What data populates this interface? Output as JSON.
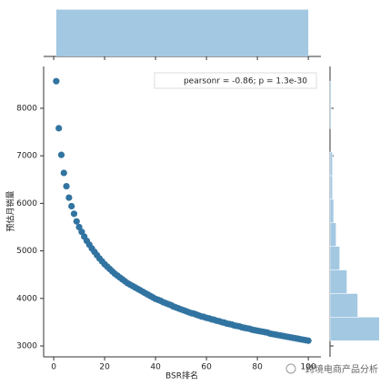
{
  "chart_data": [
    {
      "type": "scatter",
      "xlabel": "BSR排名",
      "ylabel": "预估月销量",
      "annotation": "pearsonr = -0.86; p = 1.3e-30",
      "color": "#3274a1",
      "legend_corner": "upper right",
      "x": [
        1,
        2,
        3,
        4,
        5,
        6,
        7,
        8,
        9,
        10,
        11,
        12,
        13,
        14,
        15,
        16,
        17,
        18,
        19,
        20,
        21,
        22,
        23,
        24,
        25,
        26,
        27,
        28,
        29,
        30,
        31,
        32,
        33,
        34,
        35,
        36,
        37,
        38,
        39,
        40,
        41,
        42,
        43,
        44,
        45,
        46,
        47,
        48,
        49,
        50,
        51,
        52,
        53,
        54,
        55,
        56,
        57,
        58,
        59,
        60,
        61,
        62,
        63,
        64,
        65,
        66,
        67,
        68,
        69,
        70,
        71,
        72,
        73,
        74,
        75,
        76,
        77,
        78,
        79,
        80,
        81,
        82,
        83,
        84,
        85,
        86,
        87,
        88,
        89,
        90,
        91,
        92,
        93,
        94,
        95,
        96,
        97,
        98,
        99,
        100
      ],
      "values": [
        8570,
        7580,
        7020,
        6640,
        6360,
        6120,
        5940,
        5780,
        5620,
        5500,
        5400,
        5300,
        5210,
        5130,
        5050,
        4980,
        4910,
        4840,
        4780,
        4720,
        4670,
        4620,
        4570,
        4520,
        4480,
        4440,
        4400,
        4360,
        4320,
        4290,
        4260,
        4230,
        4200,
        4170,
        4140,
        4110,
        4080,
        4050,
        4020,
        3990,
        3970,
        3950,
        3920,
        3900,
        3880,
        3860,
        3830,
        3810,
        3790,
        3770,
        3750,
        3730,
        3710,
        3690,
        3680,
        3660,
        3640,
        3620,
        3610,
        3590,
        3580,
        3560,
        3550,
        3530,
        3520,
        3500,
        3490,
        3470,
        3460,
        3450,
        3430,
        3420,
        3410,
        3390,
        3380,
        3370,
        3360,
        3340,
        3330,
        3320,
        3310,
        3300,
        3290,
        3280,
        3260,
        3250,
        3240,
        3230,
        3220,
        3210,
        3200,
        3190,
        3180,
        3170,
        3160,
        3150,
        3140,
        3130,
        3120,
        3110
      ],
      "xlim": [
        -3.95,
        104.95
      ],
      "ylim": [
        2770,
        8880
      ],
      "xticks": [
        0,
        20,
        40,
        60,
        80,
        100
      ],
      "yticks": [
        3000,
        4000,
        5000,
        6000,
        7000,
        8000
      ]
    },
    {
      "type": "histogram",
      "orientation": "vertical",
      "color": "#a3c8e2",
      "bins": [
        1,
        100
      ],
      "counts": [
        100
      ],
      "ylim": [
        0,
        105
      ]
    },
    {
      "type": "histogram",
      "orientation": "horizontal",
      "color": "#a3c8e2",
      "bins": [
        3110,
        3606,
        4102,
        4598,
        5094,
        5590,
        6086,
        6582,
        7078,
        7574,
        8070,
        8570
      ],
      "counts": [
        41,
        23,
        14,
        8,
        5,
        3,
        2,
        2,
        0,
        1,
        1
      ],
      "xlim": [
        0,
        43
      ]
    }
  ],
  "watermark": "跨境电商产品分析"
}
